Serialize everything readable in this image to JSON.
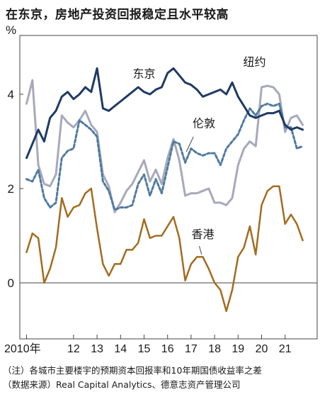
{
  "title": "在东京，房地产投资回报稳定且水平较高",
  "notes": [
    "（注）各城市主要楼宇的预期资本回报率和10年期国债收益率之差",
    "（数据来源）Real Capital Analytics、德意志资产管理公司"
  ],
  "chart_data": {
    "type": "line",
    "ylabel": "%",
    "ylim": [
      -1.2,
      5.3
    ],
    "yticks": [
      0,
      2,
      4
    ],
    "xlim": [
      2009.85,
      2022.2
    ],
    "xticks": [
      {
        "x": 2010,
        "label": "2010年"
      },
      {
        "x": 2012,
        "label": "12"
      },
      {
        "x": 2013,
        "label": "13"
      },
      {
        "x": 2014,
        "label": "14"
      },
      {
        "x": 2015,
        "label": "15"
      },
      {
        "x": 2016,
        "label": "16"
      },
      {
        "x": 2017,
        "label": "17"
      },
      {
        "x": 2018,
        "label": "18"
      },
      {
        "x": 2019,
        "label": "19"
      },
      {
        "x": 2020,
        "label": "20"
      },
      {
        "x": 2021,
        "label": "21"
      }
    ],
    "series": [
      {
        "name": "东京",
        "color": "#1f3a64",
        "dash": "",
        "width": 3,
        "x": [
          2010.0,
          2010.5,
          2010.75,
          2011.0,
          2011.25,
          2011.5,
          2011.75,
          2012.0,
          2012.25,
          2012.5,
          2012.75,
          2013.0,
          2013.25,
          2013.5,
          2013.75,
          2014.0,
          2014.25,
          2014.5,
          2014.75,
          2015.0,
          2015.25,
          2015.5,
          2015.75,
          2016.0,
          2016.25,
          2016.5,
          2016.75,
          2017.0,
          2017.25,
          2017.5,
          2017.75,
          2018.0,
          2018.25,
          2018.5,
          2018.75,
          2019.0,
          2019.25,
          2019.5,
          2019.75,
          2020.0,
          2020.25,
          2020.5,
          2020.75,
          2021.0,
          2021.25,
          2021.5,
          2021.75
        ],
        "values": [
          2.65,
          3.25,
          3.0,
          3.5,
          3.65,
          3.95,
          4.05,
          3.9,
          4.0,
          4.15,
          4.05,
          4.55,
          3.7,
          3.65,
          3.75,
          3.85,
          3.95,
          4.05,
          4.15,
          4.05,
          4.0,
          4.1,
          4.15,
          4.45,
          4.55,
          4.4,
          4.25,
          4.2,
          4.1,
          3.95,
          4.0,
          4.05,
          4.1,
          4.0,
          4.25,
          3.95,
          3.75,
          3.55,
          3.5,
          3.55,
          3.6,
          3.6,
          3.65,
          3.35,
          3.25,
          3.3,
          3.25
        ]
      },
      {
        "name": "纽约",
        "color": "#a7a9bb",
        "dash": "",
        "width": 3,
        "x": [
          2010.0,
          2010.25,
          2010.5,
          2010.75,
          2011.0,
          2011.25,
          2011.5,
          2011.75,
          2012.0,
          2012.25,
          2012.5,
          2012.75,
          2013.0,
          2013.25,
          2013.5,
          2013.75,
          2014.0,
          2014.25,
          2014.5,
          2014.75,
          2015.0,
          2015.25,
          2015.5,
          2015.75,
          2016.0,
          2016.25,
          2016.5,
          2016.75,
          2017.0,
          2017.25,
          2017.5,
          2017.75,
          2018.0,
          2018.25,
          2018.5,
          2018.75,
          2019.0,
          2019.25,
          2019.5,
          2019.75,
          2020.0,
          2020.25,
          2020.5,
          2020.75,
          2021.0,
          2021.25,
          2021.5,
          2021.75
        ],
        "values": [
          3.8,
          4.3,
          2.5,
          2.1,
          2.05,
          2.3,
          3.55,
          3.4,
          3.3,
          3.45,
          3.65,
          3.35,
          3.2,
          2.3,
          2.05,
          1.5,
          1.7,
          1.95,
          2.1,
          2.35,
          2.6,
          2.15,
          2.4,
          2.1,
          2.65,
          3.05,
          2.6,
          1.85,
          1.9,
          1.9,
          1.95,
          2.0,
          1.7,
          1.7,
          1.65,
          1.8,
          2.5,
          2.85,
          3.0,
          2.9,
          4.15,
          4.18,
          4.15,
          4.0,
          3.2,
          3.5,
          3.55,
          3.35
        ]
      },
      {
        "name": "伦敦",
        "color": "#4f7aa0",
        "dash": "4 3",
        "width": 3,
        "x": [
          2010.0,
          2010.25,
          2010.5,
          2010.75,
          2011.0,
          2011.25,
          2011.5,
          2011.75,
          2012.0,
          2012.25,
          2012.5,
          2012.75,
          2013.0,
          2013.25,
          2013.5,
          2013.75,
          2014.0,
          2014.25,
          2014.5,
          2014.75,
          2015.0,
          2015.25,
          2015.5,
          2015.75,
          2016.0,
          2016.25,
          2016.5,
          2016.75,
          2017.0,
          2017.25,
          2017.5,
          2017.75,
          2018.0,
          2018.25,
          2018.5,
          2018.75,
          2019.0,
          2019.25,
          2019.5,
          2019.75,
          2020.0,
          2020.25,
          2020.5,
          2020.75,
          2021.0,
          2021.25,
          2021.5,
          2021.75
        ],
        "values": [
          2.2,
          2.15,
          2.4,
          1.8,
          1.6,
          1.7,
          2.65,
          2.8,
          2.85,
          3.45,
          3.35,
          3.25,
          3.1,
          2.15,
          1.95,
          1.55,
          1.6,
          1.6,
          1.65,
          2.1,
          2.3,
          1.85,
          2.2,
          1.9,
          2.45,
          3.0,
          2.95,
          2.55,
          2.85,
          2.75,
          2.7,
          2.75,
          2.75,
          2.5,
          2.85,
          3.0,
          3.15,
          3.45,
          3.7,
          3.55,
          3.75,
          3.8,
          3.75,
          3.8,
          3.3,
          3.3,
          2.85,
          2.9
        ]
      },
      {
        "name": "香港",
        "color": "#a46b1e",
        "dash": "",
        "width": 2.5,
        "x": [
          2010.0,
          2010.25,
          2010.5,
          2010.75,
          2011.0,
          2011.25,
          2011.5,
          2011.75,
          2012.0,
          2012.25,
          2012.5,
          2012.75,
          2013.0,
          2013.25,
          2013.5,
          2013.75,
          2014.0,
          2014.25,
          2014.5,
          2014.75,
          2015.0,
          2015.25,
          2015.5,
          2015.75,
          2016.0,
          2016.25,
          2016.5,
          2016.75,
          2017.0,
          2017.25,
          2017.5,
          2017.75,
          2018.0,
          2018.25,
          2018.5,
          2018.75,
          2019.0,
          2019.25,
          2019.5,
          2019.75,
          2020.0,
          2020.25,
          2020.5,
          2020.75,
          2021.0,
          2021.25,
          2021.5,
          2021.75
        ],
        "values": [
          0.65,
          1.05,
          0.95,
          0.0,
          0.3,
          0.75,
          1.8,
          1.4,
          1.6,
          1.65,
          1.9,
          2.0,
          1.15,
          0.4,
          0.15,
          0.4,
          0.4,
          0.7,
          0.7,
          0.85,
          1.35,
          0.95,
          1.0,
          1.0,
          1.2,
          1.4,
          0.95,
          0.05,
          0.4,
          0.55,
          0.55,
          0.3,
          0.0,
          -0.15,
          -0.6,
          -0.15,
          0.55,
          0.75,
          1.2,
          0.6,
          1.65,
          1.95,
          2.05,
          2.05,
          1.25,
          1.45,
          1.25,
          0.9
        ]
      }
    ],
    "labels": [
      {
        "text": "东京",
        "x": 2015.0,
        "y": 4.35
      },
      {
        "text": "纽约",
        "x": 2019.7,
        "y": 4.6
      },
      {
        "text": "伦敦",
        "x": 2017.55,
        "y": 3.3
      },
      {
        "text": "香港",
        "x": 2017.5,
        "y": 0.95
      }
    ]
  }
}
